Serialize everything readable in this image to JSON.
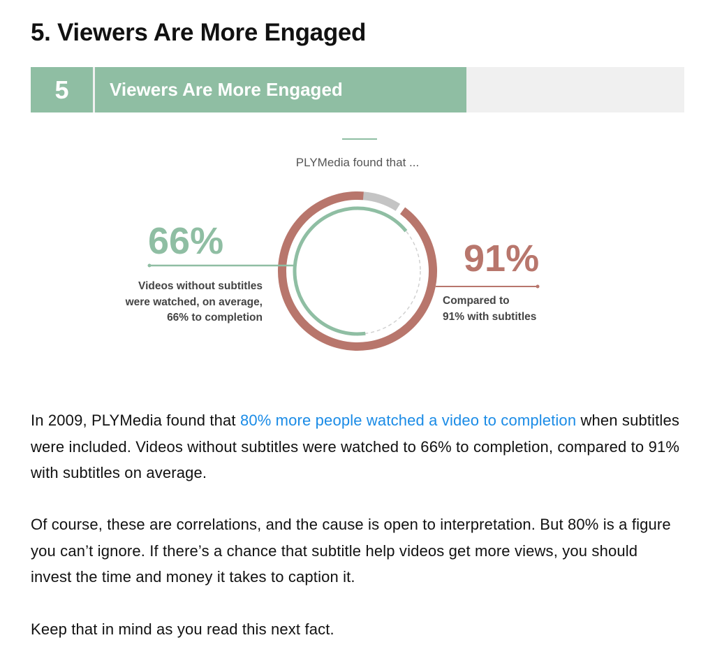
{
  "article": {
    "section_title": "5. Viewers Are More Engaged"
  },
  "banner": {
    "number": "5",
    "heading": "Viewers Are More Engaged"
  },
  "infographic": {
    "lead": "PLYMedia found that ...",
    "left_stat": {
      "value": "66%",
      "caption_lines": [
        "Videos without subtitles",
        "were watched, on average,",
        "66% to completion"
      ],
      "fraction": 0.66
    },
    "right_stat": {
      "value": "91%",
      "caption_lines": [
        "Compared to",
        "91% with subtitles"
      ],
      "fraction": 0.91
    },
    "colors": {
      "green": "#8fbea3",
      "red": "#b8766c",
      "gray": "#c4c4c4",
      "dashed": "#cfcfcf"
    }
  },
  "paragraphs": {
    "p1": {
      "before_link": "In 2009, PLYMedia found that ",
      "link_text": "80% more people watched a video to completion",
      "after_link": " when subtitles were included. Videos without subtitles were watched to 66% to completion, compared to 91% with subtitles on average."
    },
    "p2": "Of course, these are correlations, and the cause is open to interpretation. But 80% is a figure you can’t ignore. If there’s a chance that subtitle help videos get more views, you should invest the time and money it takes to caption it.",
    "p3": "Keep that in mind as you read this next fact."
  }
}
